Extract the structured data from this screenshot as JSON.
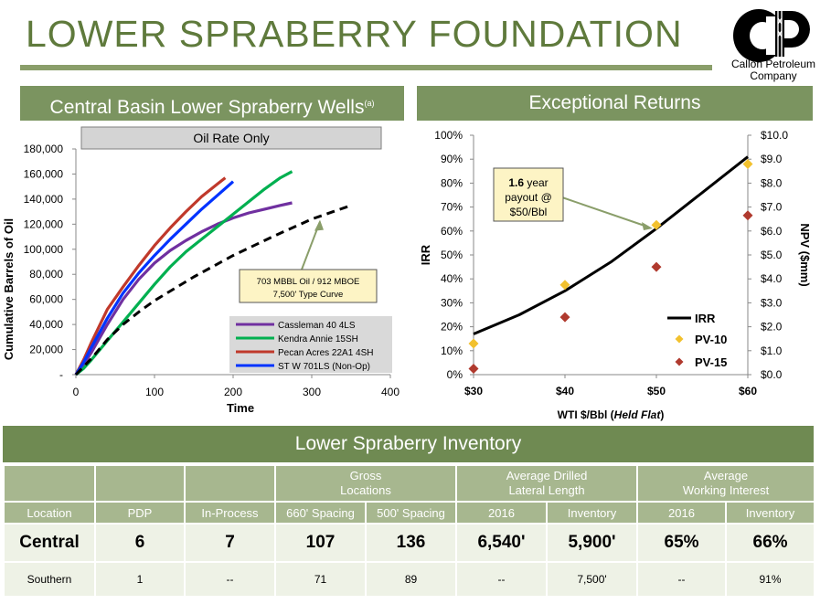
{
  "page": {
    "title": "LOWER SPRABERRY FOUNDATION",
    "logo_text_line1": "Callon Petroleum",
    "logo_text_line2": "Company"
  },
  "left_panel": {
    "header": "Central Basin Lower Spraberry Wells",
    "header_superscript": "(a)"
  },
  "right_panel": {
    "header": "Exceptional Returns"
  },
  "chart_data": [
    {
      "type": "line",
      "title": "Oil Rate Only",
      "xlabel": "Time",
      "ylabel": "Cumulative Barrels of Oil",
      "xlim": [
        0,
        400
      ],
      "ylim": [
        0,
        180000
      ],
      "x_ticks": [
        "0",
        "100",
        "200",
        "300",
        "400"
      ],
      "y_ticks": [
        "-",
        "20,000",
        "40,000",
        "60,000",
        "80,000",
        "100,000",
        "120,000",
        "140,000",
        "160,000",
        "180,000"
      ],
      "legend_position": "bottom-right",
      "series": [
        {
          "name": "Cassleman 40 4LS",
          "color": "#7030a0",
          "style": "solid",
          "x": [
            0,
            10,
            20,
            40,
            60,
            80,
            100,
            120,
            140,
            160,
            180,
            200,
            220,
            240,
            260,
            275
          ],
          "y": [
            0,
            8000,
            18000,
            40000,
            60000,
            76000,
            89000,
            99000,
            107000,
            114000,
            120000,
            125000,
            129000,
            132000,
            135000,
            137000
          ]
        },
        {
          "name": "Kendra Annie 15SH",
          "color": "#00b050",
          "style": "solid",
          "x": [
            0,
            10,
            20,
            40,
            60,
            80,
            100,
            120,
            140,
            160,
            180,
            200,
            220,
            240,
            260,
            275
          ],
          "y": [
            0,
            5000,
            12000,
            27000,
            42000,
            57000,
            72000,
            86000,
            98000,
            108000,
            118000,
            128000,
            138000,
            148000,
            157000,
            162000
          ]
        },
        {
          "name": "Pecan Acres 22A1 4SH",
          "color": "#c0392b",
          "style": "solid",
          "x": [
            0,
            10,
            20,
            40,
            60,
            80,
            100,
            120,
            140,
            160,
            180,
            190
          ],
          "y": [
            0,
            12000,
            26000,
            52000,
            70000,
            87000,
            103000,
            117000,
            130000,
            142000,
            152000,
            157000
          ]
        },
        {
          "name": "ST W 701LS (Non-Op)",
          "color": "#0033ff",
          "style": "solid",
          "x": [
            0,
            10,
            20,
            40,
            60,
            80,
            100,
            120,
            140,
            160,
            180,
            200
          ],
          "y": [
            0,
            10000,
            22000,
            45000,
            65000,
            81000,
            95000,
            108000,
            120000,
            132000,
            143000,
            154000
          ]
        },
        {
          "name": "Type Curve",
          "color": "#000000",
          "style": "dashed",
          "x": [
            0,
            20,
            40,
            60,
            80,
            100,
            150,
            200,
            250,
            300,
            350
          ],
          "y": [
            0,
            13000,
            28000,
            40000,
            50000,
            59000,
            78000,
            95000,
            110000,
            124000,
            135000
          ]
        }
      ],
      "legend_entries": [
        "Cassleman 40 4LS",
        "Kendra Annie 15SH",
        "Pecan Acres 22A1 4SH",
        "ST W 701LS (Non-Op)"
      ],
      "annotation": {
        "line1": "703 MBBL Oil / 912 MBOE",
        "line2": "7,500' Type Curve"
      }
    },
    {
      "type": "line",
      "xlabel_prefix": "WTI $/Bbl (",
      "xlabel_italic": "Held Flat",
      "xlabel_suffix": ")",
      "ylabel_left": "IRR",
      "ylabel_right": "NPV ($mm)",
      "x_categories": [
        "$30",
        "$40",
        "$50",
        "$60"
      ],
      "x_values": [
        30,
        40,
        50,
        60
      ],
      "ylim_left": [
        0,
        100
      ],
      "ylim_right": [
        0,
        10
      ],
      "y_left_ticks": [
        "0%",
        "10%",
        "20%",
        "30%",
        "40%",
        "50%",
        "60%",
        "70%",
        "80%",
        "90%",
        "100%"
      ],
      "y_right_ticks": [
        "$0.0",
        "$1.0",
        "$2.0",
        "$3.0",
        "$4.0",
        "$5.0",
        "$6.0",
        "$7.0",
        "$8.0",
        "$9.0",
        "$10.0"
      ],
      "legend_position": "bottom-right",
      "series": [
        {
          "name": "IRR",
          "axis": "left",
          "kind": "line",
          "color": "#000000",
          "x": [
            30,
            35,
            40,
            45,
            50,
            55,
            60
          ],
          "y": [
            17,
            25,
            35,
            47,
            61,
            76,
            91
          ]
        },
        {
          "name": "PV-10",
          "axis": "right",
          "kind": "marker",
          "marker": "diamond",
          "color": "#f2c12e",
          "x": [
            30,
            40,
            50,
            60
          ],
          "y": [
            1.3,
            3.75,
            6.25,
            8.8
          ]
        },
        {
          "name": "PV-15",
          "axis": "right",
          "kind": "marker",
          "marker": "diamond",
          "color": "#b03a2e",
          "x": [
            30,
            40,
            50,
            60
          ],
          "y": [
            0.25,
            2.4,
            4.5,
            6.65
          ]
        }
      ],
      "callout": {
        "bold": "1.6",
        "rest": " year",
        "line2": "payout @",
        "line3": "$50/Bbl"
      }
    }
  ],
  "inventory": {
    "header": "Lower Spraberry Inventory",
    "groups": [
      "",
      "",
      "",
      "Gross\nLocations",
      "Average Drilled\nLateral Length",
      "Average\nWorking Interest"
    ],
    "columns": [
      "Location",
      "PDP",
      "In-Process",
      "660' Spacing",
      "500' Spacing",
      "2016",
      "Inventory",
      "2016",
      "Inventory"
    ],
    "rows": [
      [
        "Central",
        "6",
        "7",
        "107",
        "136",
        "6,540'",
        "5,900'",
        "65%",
        "66%"
      ],
      [
        "Southern",
        "1",
        "--",
        "71",
        "89",
        "--",
        "7,500'",
        "--",
        "91%"
      ]
    ]
  }
}
